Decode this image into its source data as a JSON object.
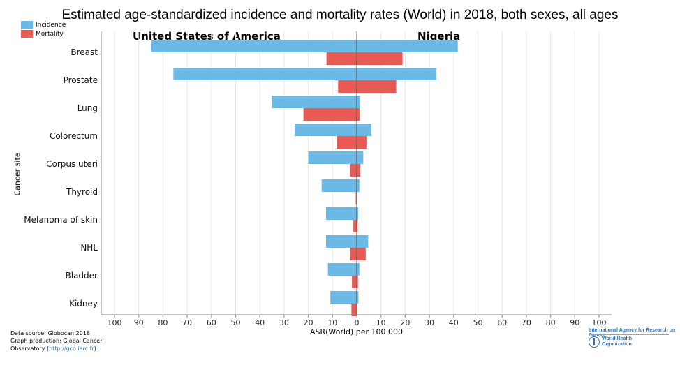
{
  "title": "Estimated age-standardized incidence and mortality rates (World) in 2018, both sexes, all ages",
  "legend": [
    {
      "label": "Incidence",
      "color": "#6cb9e6"
    },
    {
      "label": "Mortality",
      "color": "#e85b55"
    }
  ],
  "footer": {
    "line1": "Data source: Globocan 2018",
    "line2": "Graph production: Global Cancer",
    "line3_prefix": "Observatory (",
    "link": "http://gco.iarc.fr",
    "line3_suffix": ")"
  },
  "logos": {
    "iarc": "International Agency for Research on Cancer",
    "who_line1": "World Health",
    "who_line2": "Organization"
  },
  "chart_data": {
    "type": "bar",
    "orientation": "horizontal-butterfly",
    "left_label": "United States of America",
    "right_label": "Nigeria",
    "xlabel": "ASR(World) per 100 000",
    "ylabel": "Cancer site",
    "xlim": [
      -100,
      100
    ],
    "xticks": [
      -100,
      -90,
      -80,
      -70,
      -60,
      -50,
      -40,
      -30,
      -20,
      -10,
      0,
      10,
      20,
      30,
      40,
      50,
      60,
      70,
      80,
      90,
      100
    ],
    "xtick_labels": [
      "100",
      "90",
      "80",
      "70",
      "60",
      "50",
      "40",
      "30",
      "20",
      "10",
      "0",
      "10",
      "20",
      "30",
      "40",
      "50",
      "60",
      "70",
      "80",
      "90",
      "100"
    ],
    "grid": true,
    "categories": [
      "Breast",
      "Prostate",
      "Lung",
      "Colorectum",
      "Corpus uteri",
      "Thyroid",
      "Melanoma of skin",
      "NHL",
      "Bladder",
      "Kidney"
    ],
    "series": [
      {
        "name": "Incidence",
        "country": "United States of America",
        "color": "#6cb9e6",
        "values": [
          84.9,
          75.7,
          35.1,
          25.6,
          20.0,
          14.5,
          12.7,
          12.7,
          11.9,
          10.9
        ]
      },
      {
        "name": "Mortality",
        "country": "United States of America",
        "color": "#e85b55",
        "values": [
          12.5,
          7.7,
          22.0,
          8.2,
          2.9,
          0.4,
          1.4,
          2.8,
          2.0,
          2.2
        ]
      },
      {
        "name": "Incidence",
        "country": "Nigeria",
        "color": "#6cb9e6",
        "values": [
          41.7,
          32.8,
          1.3,
          6.1,
          2.7,
          1.1,
          0.6,
          4.7,
          1.1,
          0.7
        ]
      },
      {
        "name": "Mortality",
        "country": "Nigeria",
        "color": "#e85b55",
        "values": [
          18.9,
          16.3,
          1.2,
          4.0,
          1.5,
          0.2,
          0.4,
          3.7,
          0.5,
          0.3
        ]
      }
    ]
  }
}
